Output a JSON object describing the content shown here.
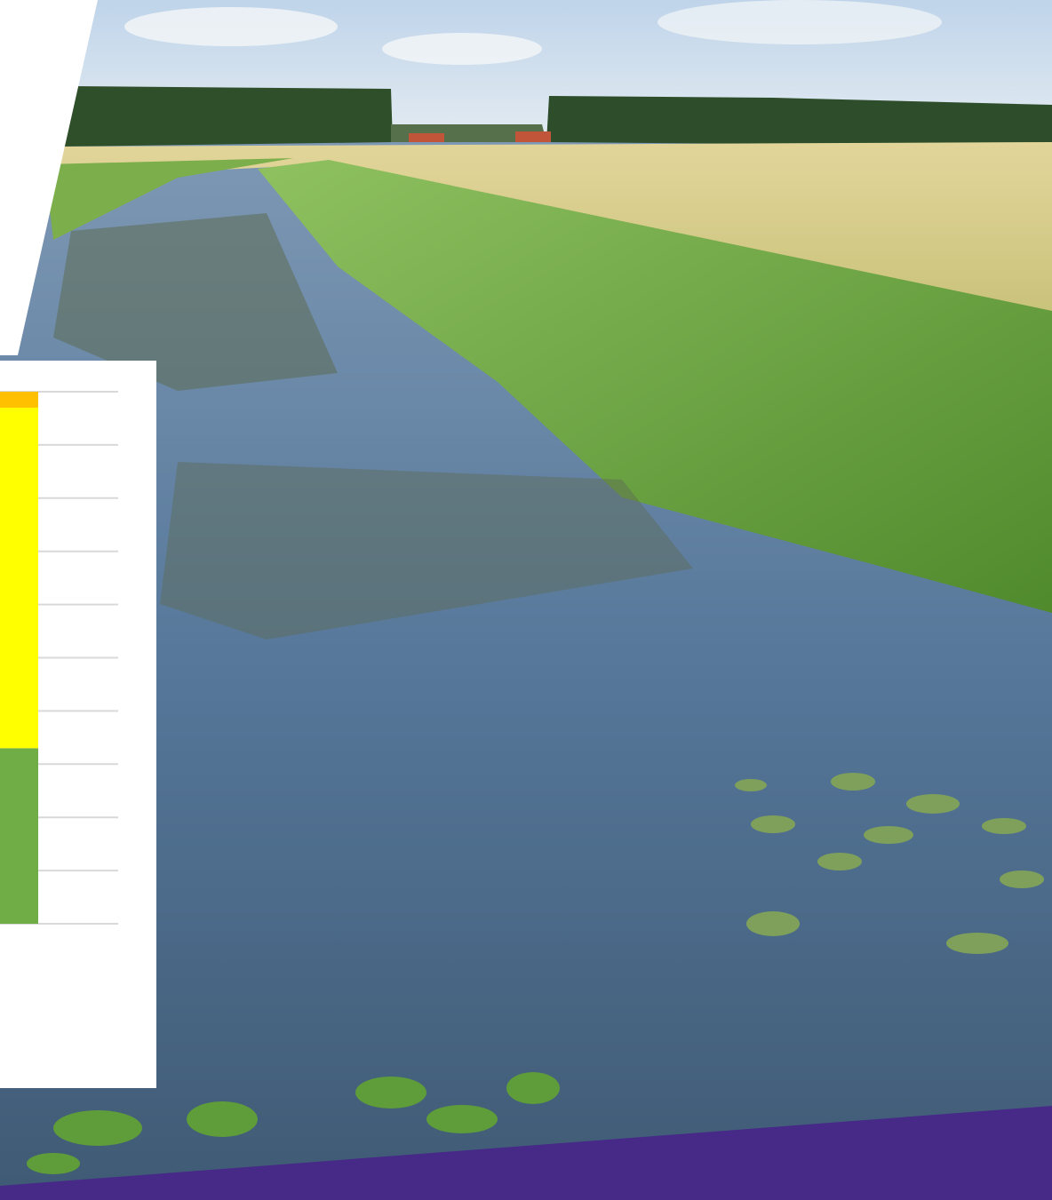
{
  "chart_data": {
    "type": "bar",
    "stacked": true,
    "categories": [
      null
    ],
    "series": [
      {
        "color": "#70ad47",
        "values": [
          3.3
        ]
      },
      {
        "color": "#ffff00",
        "values": [
          6.4
        ]
      },
      {
        "color": "#ffc000",
        "values": [
          0.3
        ]
      }
    ],
    "ylim": [
      0,
      10
    ],
    "yticks": [
      0,
      1,
      2,
      3,
      4,
      5,
      6,
      7,
      8,
      9,
      10
    ],
    "grid": true
  }
}
